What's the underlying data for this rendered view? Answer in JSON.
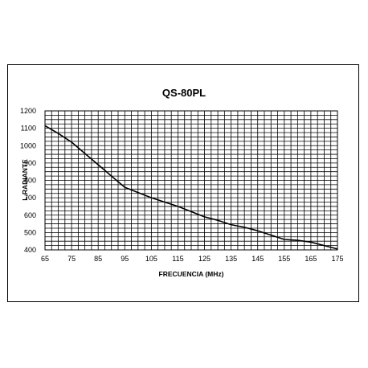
{
  "chart_data": {
    "type": "line",
    "title": "QS-80PL",
    "xlabel": "FRECUENCIA  (MHz)",
    "ylabel": "L.RADIANTE",
    "xlim": [
      65,
      175
    ],
    "ylim": [
      400,
      1200
    ],
    "x_ticks": [
      "65",
      "75",
      "85",
      "95",
      "105",
      "115",
      "125",
      "135",
      "145",
      "155",
      "165",
      "175"
    ],
    "y_ticks": [
      "400",
      "500",
      "600",
      "700",
      "800",
      "900",
      "1000",
      "1100",
      "1200"
    ],
    "grid": true,
    "x_minor_step": 2.5,
    "y_minor_step": 25,
    "line_color": "#000000",
    "series": [
      {
        "x": [
          65,
          70,
          75,
          80,
          85,
          90,
          95,
          100,
          105,
          110,
          115,
          120,
          125,
          130,
          135,
          140,
          145,
          150,
          155,
          160,
          165,
          170,
          175
        ],
        "values": [
          1115,
          1070,
          1020,
          955,
          890,
          825,
          760,
          730,
          700,
          675,
          650,
          620,
          590,
          570,
          545,
          530,
          510,
          485,
          460,
          455,
          445,
          425,
          405
        ]
      }
    ]
  }
}
